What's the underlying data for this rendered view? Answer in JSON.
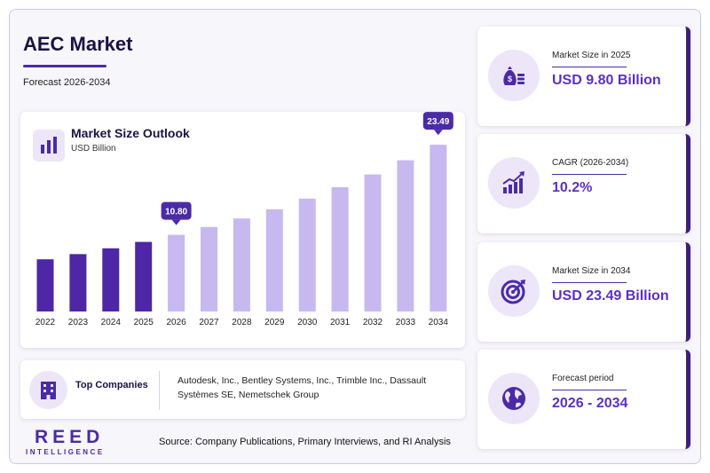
{
  "header": {
    "title": "AEC Market",
    "subtitle": "Forecast 2026-2034"
  },
  "chart_card": {
    "title": "Market Size Outlook",
    "unit": "USD Billion"
  },
  "chart_data": {
    "type": "bar",
    "title": "Market Size Outlook",
    "ylabel": "USD Billion",
    "categories": [
      "2022",
      "2023",
      "2024",
      "2025",
      "2026",
      "2027",
      "2028",
      "2029",
      "2030",
      "2031",
      "2032",
      "2033",
      "2034"
    ],
    "values": [
      7.35,
      8.08,
      8.9,
      9.8,
      10.8,
      11.9,
      13.1,
      14.4,
      15.9,
      17.5,
      19.3,
      21.3,
      23.49
    ],
    "historical_until": "2025",
    "callouts": [
      {
        "category": "2026",
        "label": "10.80"
      },
      {
        "category": "2034",
        "label": "23.49"
      }
    ],
    "ylim": [
      0,
      25
    ],
    "grid": false,
    "colors": {
      "historical": "#4d27a6",
      "forecast": "#c7b8f0",
      "callout": "#4b2aa8"
    }
  },
  "companies": {
    "label": "Top Companies",
    "list": "Autodesk, Inc., Bentley Systems, Inc., Trimble Inc., Dassault Systèmes SE, Nemetschek Group"
  },
  "footer": {
    "logo_main": "REED",
    "logo_sub": "INTELLIGENCE",
    "source": "Source: Company Publications, Primary Interviews, and RI Analysis"
  },
  "stats": [
    {
      "label": "Market Size in 2025",
      "value": "USD 9.80 Billion",
      "icon": "money-bag-icon"
    },
    {
      "label": "CAGR (2026-2034)",
      "value": "10.2%",
      "icon": "growth-chart-icon"
    },
    {
      "label": "Market Size in 2034",
      "value": "USD 23.49 Billion",
      "icon": "target-icon"
    },
    {
      "label": "Forecast period",
      "value": "2026 - 2034",
      "icon": "globe-icon"
    }
  ],
  "colors": {
    "accent": "#4b2aa8",
    "value_text": "#5b2fc7",
    "card_border": "#3d1f7a",
    "icon_bg": "#ece6f8"
  }
}
